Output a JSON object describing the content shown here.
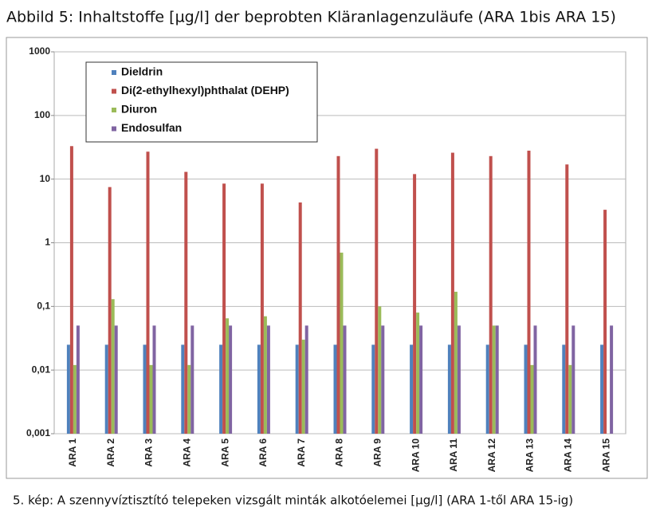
{
  "chart_data": {
    "type": "bar",
    "title": "Abbild 5: Inhaltstoffe [µg/l] der beprobten Kläranlagenzuläufe (ARA 1bis ARA 15)",
    "caption": "5. kép: A szennyvíztisztító telepeken vizsgált minták alkotóelemei [µg/l] (ARA 1-től ARA 15-ig)",
    "categories": [
      "ARA 1",
      "ARA 2",
      "ARA 3",
      "ARA 4",
      "ARA 5",
      "ARA 6",
      "ARA 7",
      "ARA 8",
      "ARA 9",
      "ARA 10",
      "ARA 11",
      "ARA 12",
      "ARA 13",
      "ARA 14",
      "ARA 15"
    ],
    "series": [
      {
        "name": "Dieldrin",
        "color": "#4f81bd",
        "values": [
          0.025,
          0.025,
          0.025,
          0.025,
          0.025,
          0.025,
          0.025,
          0.025,
          0.025,
          0.025,
          0.025,
          0.025,
          0.025,
          0.025,
          0.025
        ]
      },
      {
        "name": "Di(2-ethylhexyl)phthalat (DEHP)",
        "color": "#c0504d",
        "values": [
          33,
          7.5,
          27,
          13,
          8.5,
          8.5,
          4.3,
          23,
          30,
          12,
          26,
          23,
          28,
          17,
          3.3
        ]
      },
      {
        "name": "Diuron",
        "color": "#9bbb59",
        "values": [
          0.012,
          0.13,
          0.012,
          0.012,
          0.065,
          0.07,
          0.03,
          0.7,
          0.1,
          0.08,
          0.17,
          0.05,
          0.012,
          0.012,
          null
        ]
      },
      {
        "name": "Endosulfan",
        "color": "#8064a2",
        "values": [
          0.05,
          0.05,
          0.05,
          0.05,
          0.05,
          0.05,
          0.05,
          0.05,
          0.05,
          0.05,
          0.05,
          0.05,
          0.05,
          0.05,
          0.05
        ]
      }
    ],
    "log_scale": true,
    "ylim": [
      0.001,
      1000
    ],
    "yticks": [
      {
        "value": 0.001,
        "label": "0,001"
      },
      {
        "value": 0.01,
        "label": "0,01"
      },
      {
        "value": 0.1,
        "label": "0,1"
      },
      1,
      10,
      100,
      1000
    ],
    "grid": true,
    "legend": "top-left"
  }
}
